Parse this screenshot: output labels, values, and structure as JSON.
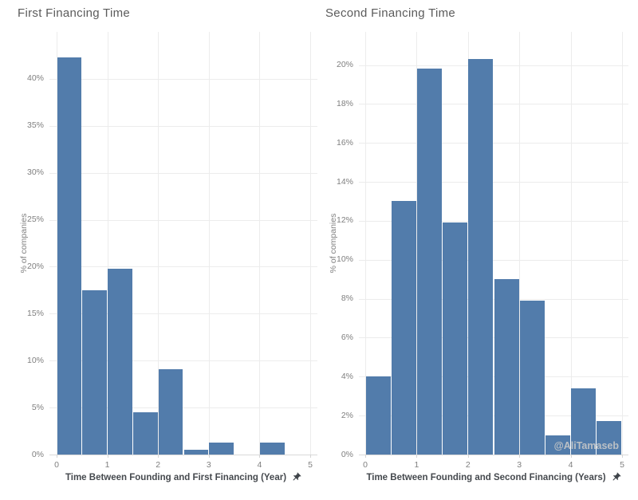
{
  "watermark": "@AliTamaseb",
  "colors": {
    "bar": "#527cab",
    "grid": "#ececec",
    "zero_line": "#d9d9d9",
    "tick_text": "#7f7f7f",
    "title_text": "#5b5b5b",
    "axis_title_text": "#45494e",
    "pin": "#3f444a",
    "watermark": "#c1c4c6"
  },
  "chart_data": [
    {
      "type": "bar",
      "title": "First Financing Time",
      "xlabel": "Time Between Founding and First Financing (Year)",
      "ylabel": "% of companies",
      "bin_width": 0.5,
      "bin_starts": [
        0,
        0.5,
        1,
        1.5,
        2,
        2.5,
        3,
        3.5,
        4,
        4.5
      ],
      "values": [
        42.3,
        17.5,
        19.8,
        4.5,
        9.1,
        0.5,
        1.3,
        0,
        1.3,
        0
      ],
      "xlim": [
        0,
        5
      ],
      "ylim": [
        0,
        45
      ],
      "xticks": [
        0,
        1,
        2,
        3,
        4,
        5
      ],
      "yticks": [
        0,
        5,
        10,
        15,
        20,
        25,
        30,
        35,
        40
      ],
      "ytick_suffix": "%",
      "grid": true,
      "legend": "none"
    },
    {
      "type": "bar",
      "title": "Second Financing Time",
      "xlabel": "Time Between Founding and Second Financing (Years)",
      "ylabel": "% of companies",
      "bin_width": 0.5,
      "bin_starts": [
        0,
        0.5,
        1,
        1.5,
        2,
        2.5,
        3,
        3.5,
        4,
        4.5
      ],
      "values": [
        4.0,
        13.0,
        19.8,
        11.9,
        20.3,
        9.0,
        7.9,
        1.0,
        3.4,
        1.7
      ],
      "xlim": [
        0,
        5
      ],
      "ylim": [
        0,
        21.7
      ],
      "xticks": [
        0,
        1,
        2,
        3,
        4,
        5
      ],
      "yticks": [
        0,
        2,
        4,
        6,
        8,
        10,
        12,
        14,
        16,
        18,
        20
      ],
      "ytick_suffix": "%",
      "grid": true,
      "legend": "none"
    }
  ]
}
